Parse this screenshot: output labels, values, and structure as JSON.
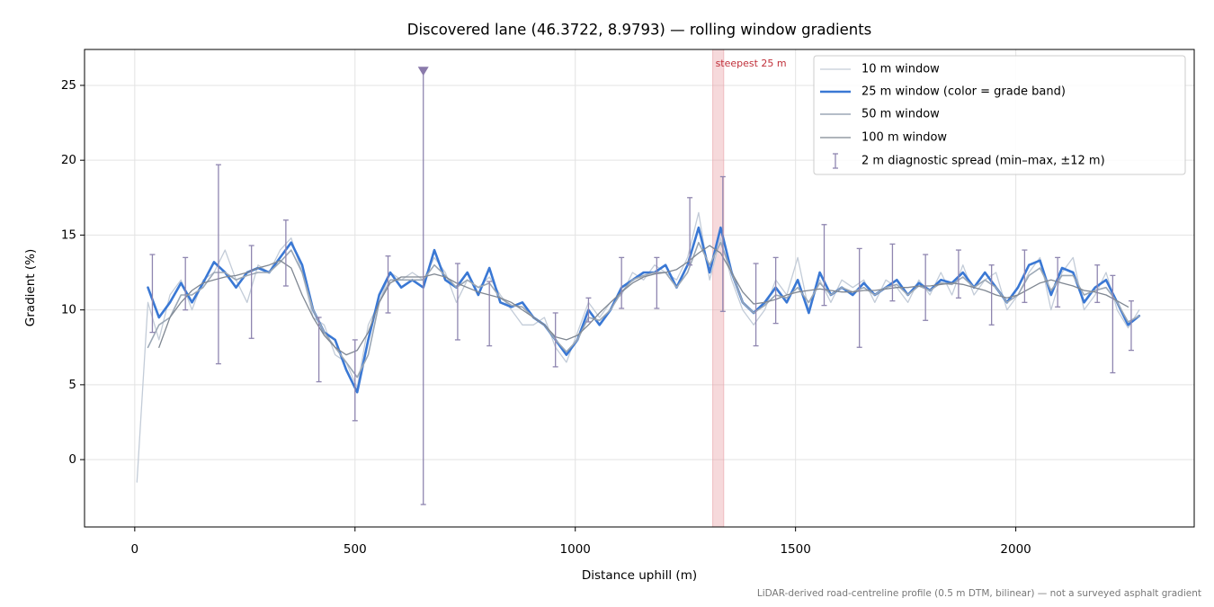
{
  "chart_data": {
    "type": "line",
    "title": "Discovered lane (46.3722, 8.9793) — rolling window gradients",
    "x_label": "Distance uphill (m)",
    "y_label": "Gradient (%)",
    "footnote": "LiDAR-derived road-centreline profile (0.5 m DTM, bilinear) — not a surveyed asphalt gradient",
    "xlim": [
      -114,
      2405
    ],
    "ylim": [
      -4.5,
      27.4
    ],
    "xticks": [
      0,
      500,
      1000,
      1500,
      2000
    ],
    "yticks": [
      0,
      5,
      10,
      15,
      20,
      25
    ],
    "grid": true,
    "legend": "upper right",
    "x": [
      5,
      30,
      55,
      80,
      105,
      130,
      155,
      180,
      205,
      230,
      255,
      280,
      305,
      330,
      355,
      380,
      405,
      430,
      455,
      480,
      505,
      530,
      555,
      580,
      605,
      630,
      655,
      680,
      705,
      730,
      755,
      780,
      805,
      830,
      855,
      880,
      905,
      930,
      955,
      980,
      1005,
      1030,
      1055,
      1080,
      1105,
      1130,
      1155,
      1180,
      1205,
      1230,
      1255,
      1280,
      1305,
      1330,
      1355,
      1380,
      1405,
      1430,
      1455,
      1480,
      1505,
      1530,
      1555,
      1580,
      1605,
      1630,
      1655,
      1680,
      1705,
      1730,
      1755,
      1780,
      1805,
      1830,
      1855,
      1880,
      1905,
      1930,
      1955,
      1980,
      2005,
      2030,
      2055,
      2080,
      2105,
      2130,
      2155,
      2180,
      2205,
      2230,
      2255,
      2280
    ],
    "series": [
      {
        "name": "10 m window",
        "color": "#c3ccd8",
        "width": 1.3,
        "values": [
          -1.5,
          10.5,
          8,
          11,
          12,
          10,
          12,
          12.5,
          14,
          12,
          10.5,
          13,
          12.5,
          14,
          14.8,
          12.5,
          9.5,
          9,
          7,
          6.5,
          4.8,
          9,
          10.5,
          12.5,
          12,
          12.5,
          12,
          13.5,
          12.5,
          10.5,
          12,
          11.5,
          12.2,
          11,
          10,
          9,
          9,
          9.5,
          7.5,
          6.5,
          8.5,
          10.5,
          9.5,
          10.5,
          11,
          12.5,
          12,
          13,
          12.5,
          12,
          13.5,
          16.5,
          12,
          14.8,
          12,
          10,
          9,
          10,
          12,
          11,
          13.5,
          10,
          12,
          10.5,
          12,
          11.5,
          12,
          10.5,
          12,
          11.5,
          10.5,
          12,
          11,
          12.5,
          11,
          13,
          11,
          12,
          12.5,
          10,
          11,
          12.5,
          13.5,
          10,
          12.5,
          13.5,
          10,
          11,
          12.5,
          10,
          8.8,
          10
        ]
      },
      {
        "name": "25 m window (color = grade band)",
        "color": "#3a78d4",
        "width": 2.6,
        "values": [
          null,
          11.5,
          9.5,
          10.5,
          11.8,
          10.5,
          11.8,
          13.2,
          12.5,
          11.5,
          12.5,
          12.8,
          12.5,
          13.5,
          14.5,
          13,
          10,
          8.5,
          8,
          6,
          4.5,
          8,
          11,
          12.5,
          11.5,
          12,
          11.5,
          14,
          12,
          11.5,
          12.5,
          11,
          12.8,
          10.5,
          10.2,
          10.5,
          9.5,
          9,
          8,
          7,
          8,
          10,
          9,
          10,
          11.5,
          12,
          12.5,
          12.5,
          13,
          11.5,
          13,
          15.5,
          12.5,
          15.5,
          12.5,
          10.5,
          9.8,
          10.5,
          11.5,
          10.5,
          12,
          9.8,
          12.5,
          11,
          11.5,
          11,
          11.8,
          11,
          11.5,
          12,
          11,
          11.8,
          11.3,
          12,
          11.8,
          12.5,
          11.5,
          12.5,
          11.5,
          10.5,
          11.5,
          13,
          13.3,
          11,
          12.8,
          12.5,
          10.5,
          11.5,
          12,
          10.5,
          9,
          9.6
        ]
      },
      {
        "name": "50 m window",
        "color": "#9ba7b5",
        "width": 1.6,
        "values": [
          null,
          7.5,
          9,
          9.5,
          11,
          11,
          11.5,
          12.5,
          12.5,
          12,
          12.3,
          12.5,
          12.5,
          13.2,
          14,
          12.5,
          10,
          8.5,
          7.5,
          6.5,
          5.5,
          7,
          10.5,
          12,
          12,
          12,
          12,
          13,
          12.3,
          11.5,
          12,
          11.5,
          11.8,
          10.8,
          10.3,
          10.2,
          9.5,
          9,
          8,
          7.2,
          8,
          9.5,
          9.3,
          10,
          11.2,
          12,
          12.3,
          12.5,
          12.5,
          11.5,
          12.5,
          14.5,
          13,
          14.5,
          12.5,
          10.5,
          9.8,
          10.3,
          11,
          10.8,
          11.5,
          10.5,
          11.8,
          11,
          11.5,
          11.2,
          11.5,
          11,
          11.5,
          11.7,
          11,
          11.6,
          11.3,
          11.8,
          11.7,
          12.2,
          11.5,
          12,
          11.5,
          10.5,
          11,
          12.3,
          12.8,
          11.3,
          12.3,
          12.3,
          11,
          11.3,
          11.5,
          10.5,
          9.2,
          9.6
        ]
      },
      {
        "name": "100 m window",
        "color": "#7f8792",
        "width": 1.3,
        "values": [
          null,
          null,
          7.5,
          9.5,
          10.5,
          11.3,
          11.8,
          12,
          12.2,
          12.3,
          12.5,
          12.8,
          13,
          13.3,
          12.8,
          11,
          9.5,
          8.3,
          7.5,
          7,
          7.3,
          8.5,
          10.5,
          11.8,
          12.2,
          12.2,
          12.2,
          12.4,
          12.2,
          11.8,
          11.5,
          11.2,
          11,
          10.8,
          10.5,
          10,
          9.5,
          9,
          8.2,
          8,
          8.3,
          9,
          9.8,
          10.5,
          11.2,
          11.8,
          12.2,
          12.4,
          12.5,
          12.7,
          13.2,
          13.8,
          14.3,
          13.8,
          12.5,
          11.2,
          10.4,
          10.5,
          10.7,
          11,
          11.2,
          11.3,
          11.4,
          11.3,
          11.2,
          11.2,
          11.3,
          11.3,
          11.4,
          11.5,
          11.5,
          11.6,
          11.6,
          11.7,
          11.8,
          11.7,
          11.5,
          11.3,
          11,
          10.8,
          11,
          11.4,
          11.8,
          12,
          11.8,
          11.6,
          11.3,
          11.2,
          11,
          10.6,
          10.2,
          null
        ]
      }
    ],
    "errorbars": {
      "name": "2 m diagnostic spread (min–max, ±12 m)",
      "color": "#8f86b0",
      "x": [
        40,
        115,
        190,
        265,
        343,
        418,
        500,
        575,
        655,
        733,
        805,
        955,
        1030,
        1105,
        1185,
        1260,
        1335,
        1410,
        1455,
        1565,
        1645,
        1720,
        1795,
        1870,
        1945,
        2020,
        2095,
        2185,
        2220,
        2262
      ],
      "low": [
        8.5,
        10,
        6.4,
        8.1,
        11.6,
        5.2,
        2.6,
        9.8,
        -3,
        8,
        7.6,
        6.2,
        9.2,
        10.1,
        10.1,
        13,
        9.9,
        7.6,
        9.1,
        10.3,
        7.5,
        10.6,
        9.3,
        10.8,
        9,
        10.5,
        10.2,
        10.5,
        5.8,
        7.3
      ],
      "high": [
        13.7,
        13.5,
        19.7,
        14.3,
        16,
        9.5,
        8,
        13.6,
        26,
        13.1,
        11.9,
        9.8,
        10.8,
        13.5,
        13.5,
        17.5,
        18.9,
        13.1,
        13.5,
        15.7,
        14.1,
        14.4,
        13.7,
        14,
        13,
        14,
        13.5,
        13,
        12.3,
        10.6
      ]
    },
    "highlight": {
      "label": "steepest 25 m",
      "x0": 1312,
      "x1": 1337,
      "color": "#e8a0a6"
    }
  }
}
